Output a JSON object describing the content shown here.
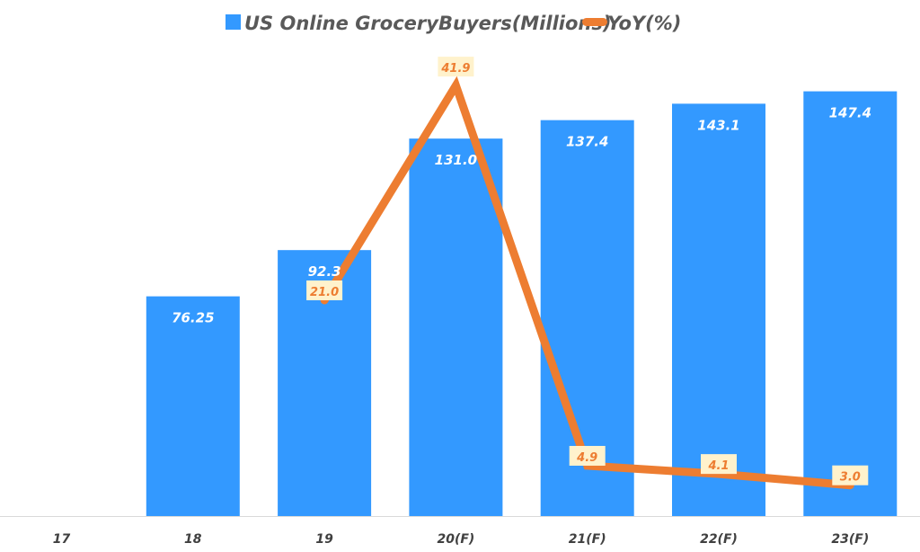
{
  "chart_data": {
    "type": "bar",
    "title": "",
    "xlabel": "",
    "ylabel": "",
    "grid": false,
    "legend_position": "top",
    "categories": [
      "17",
      "18",
      "19",
      "20(F)",
      "21(F)",
      "22(F)",
      "23(F)"
    ],
    "series": [
      {
        "name": "US Online GroceryBuyers(Millions)",
        "type": "bar",
        "color": "#3399FF",
        "values": [
          null,
          76.25,
          92.3,
          131.0,
          137.4,
          143.1,
          147.4
        ],
        "labels": [
          "",
          "76.25",
          "92.3",
          "131.0",
          "137.4",
          "143.1",
          "147.4"
        ]
      },
      {
        "name": "YoY(%)",
        "type": "line",
        "color": "#ED7D31",
        "values": [
          null,
          null,
          21.0,
          41.9,
          4.9,
          4.1,
          3.0
        ],
        "labels": [
          "",
          "",
          "21.0",
          "41.9",
          "4.9",
          "4.1",
          "3.0"
        ]
      }
    ],
    "ylim_bar": [
      0,
      150
    ],
    "ylim_line": [
      0,
      42
    ]
  }
}
